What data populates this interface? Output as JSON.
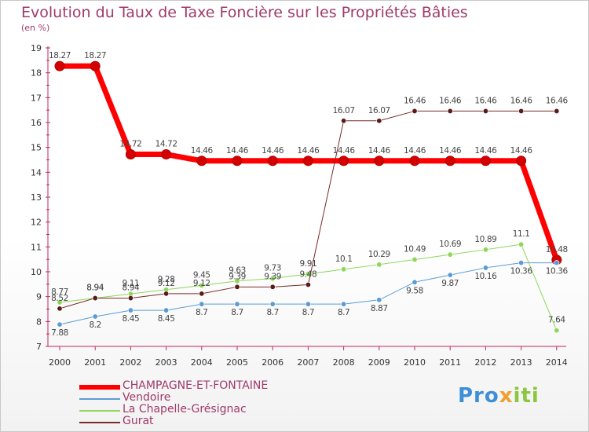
{
  "title": "Evolution du Taux de Taxe Foncière sur les Propriétés Bâties",
  "subtitle": "(en %)",
  "logo": {
    "part1": "Pro",
    "part2": "x",
    "part3": "iti"
  },
  "chart_data": {
    "type": "line",
    "x": [
      "2000",
      "2001",
      "2002",
      "2003",
      "2004",
      "2005",
      "2006",
      "2007",
      "2008",
      "2009",
      "2010",
      "2011",
      "2012",
      "2013",
      "2014"
    ],
    "ylim": [
      7,
      19
    ],
    "yticks": [
      7,
      8,
      9,
      10,
      11,
      12,
      13,
      14,
      15,
      16,
      17,
      18,
      19
    ],
    "grid": false,
    "legend_position": "bottom-left",
    "series": [
      {
        "name": "CHAMPAGNE-ET-FONTAINE",
        "color": "#ff0000",
        "values": [
          18.27,
          18.27,
          14.72,
          14.72,
          14.46,
          14.46,
          14.46,
          14.46,
          14.46,
          14.46,
          14.46,
          14.46,
          14.46,
          14.46,
          10.48
        ]
      },
      {
        "name": "Vendoire",
        "color": "#5b9bd5",
        "values": [
          7.88,
          8.2,
          8.45,
          8.45,
          8.7,
          8.7,
          8.7,
          8.7,
          8.7,
          8.87,
          9.58,
          9.87,
          10.16,
          10.36,
          10.36
        ]
      },
      {
        "name": "La Chapelle-Grésignac",
        "color": "#8ed65a",
        "values": [
          8.77,
          8.94,
          9.11,
          9.28,
          9.45,
          9.63,
          9.73,
          9.91,
          10.1,
          10.29,
          10.49,
          10.69,
          10.89,
          11.1,
          7.64
        ]
      },
      {
        "name": "Gurat",
        "color": "#7b2a2a",
        "values": [
          8.52,
          8.94,
          8.94,
          9.12,
          9.12,
          9.39,
          9.39,
          9.48,
          16.07,
          16.07,
          16.46,
          16.46,
          16.46,
          16.46,
          16.46
        ]
      }
    ]
  }
}
